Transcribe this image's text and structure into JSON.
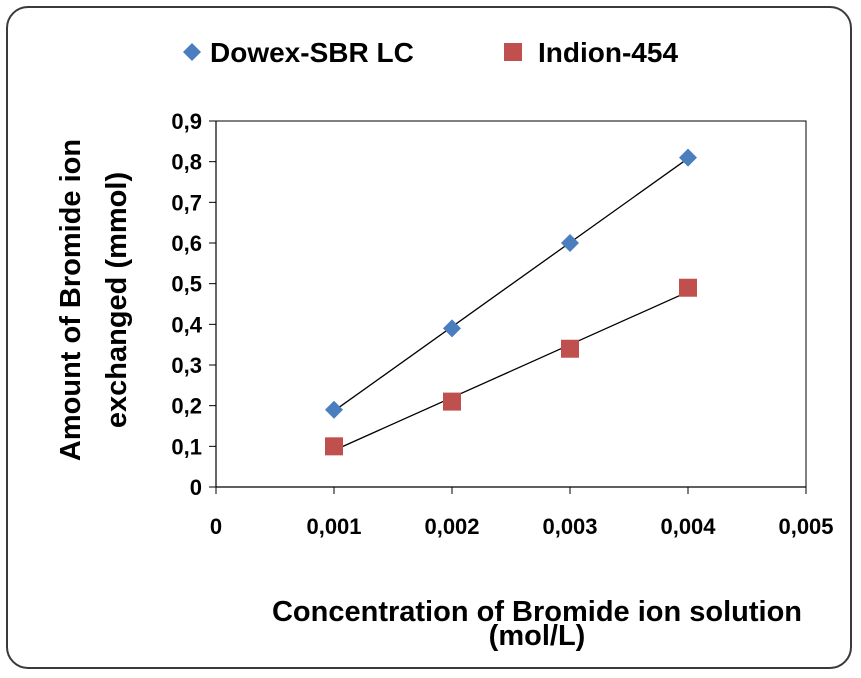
{
  "chart_data": {
    "type": "scatter",
    "xlabel_lines": [
      "Concentration of Bromide ion solution",
      "(mol/L)"
    ],
    "ylabel_lines": [
      "Amount of Bromide ion",
      "exchanged (mmol)"
    ],
    "xlim": [
      0,
      0.005
    ],
    "ylim": [
      0,
      0.9
    ],
    "x_ticks": [
      "0",
      "0,001",
      "0,002",
      "0,003",
      "0,004",
      "0,005"
    ],
    "x_tick_values": [
      0,
      0.001,
      0.002,
      0.003,
      0.004,
      0.005
    ],
    "y_ticks": [
      "0",
      "0,1",
      "0,2",
      "0,3",
      "0,4",
      "0,5",
      "0,6",
      "0,7",
      "0,8",
      "0,9"
    ],
    "y_tick_values": [
      0,
      0.1,
      0.2,
      0.3,
      0.4,
      0.5,
      0.6,
      0.7,
      0.8,
      0.9
    ],
    "legend_position": "top",
    "grid": false,
    "trendlines": true,
    "series": [
      {
        "name": "Dowex-SBR LC",
        "marker": "diamond",
        "color": "#4a7ebf",
        "x": [
          0.001,
          0.002,
          0.003,
          0.004
        ],
        "y": [
          0.19,
          0.39,
          0.6,
          0.81
        ]
      },
      {
        "name": "Indion-454",
        "marker": "square",
        "color": "#c0504d",
        "x": [
          0.001,
          0.002,
          0.003,
          0.004
        ],
        "y": [
          0.1,
          0.21,
          0.34,
          0.49
        ]
      }
    ]
  }
}
